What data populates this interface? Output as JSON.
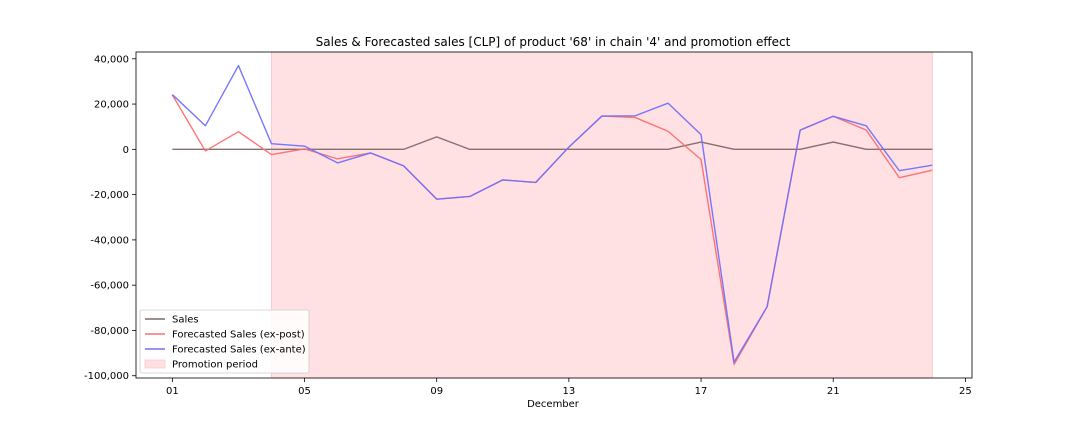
{
  "chart_data": {
    "type": "line",
    "title": "Sales & Forecasted sales [CLP] of product '68' in chain '4' and promotion effect",
    "xlabel": "December",
    "ylabel": "",
    "x": [
      1,
      2,
      3,
      4,
      5,
      6,
      7,
      8,
      9,
      10,
      11,
      12,
      13,
      14,
      15,
      16,
      17,
      18,
      19,
      20,
      21,
      22,
      23,
      24
    ],
    "xlim": [
      -0.1,
      25.2
    ],
    "xticks": [
      1,
      5,
      9,
      13,
      17,
      21,
      25
    ],
    "xtick_labels": [
      "01",
      "05",
      "09",
      "13",
      "17",
      "21",
      "25"
    ],
    "ylim": [
      -101000,
      43000
    ],
    "yticks": [
      40000,
      20000,
      0,
      -20000,
      -40000,
      -60000,
      -80000,
      -100000
    ],
    "ytick_labels": [
      "40,000",
      "20,000",
      "0",
      "-20,000",
      "-40,000",
      "-60,000",
      "-80,000",
      "-100,000"
    ],
    "grid": false,
    "legend_position": "bottom-left",
    "series": [
      {
        "name": "Sales",
        "color": "#7f6868",
        "values": [
          0,
          0,
          0,
          0,
          0,
          0,
          0,
          0,
          5500,
          0,
          0,
          0,
          0,
          0,
          0,
          0,
          3200,
          0,
          0,
          0,
          3200,
          0,
          0,
          0
        ]
      },
      {
        "name": "Forecasted Sales (ex-post)",
        "color": "#ff6e6e",
        "values": [
          24000,
          -700,
          7800,
          -2300,
          200,
          -4200,
          -1600,
          -7300,
          -22000,
          -20800,
          -13500,
          -14600,
          1000,
          14700,
          14100,
          8000,
          -4500,
          -95000,
          -69500,
          8500,
          14600,
          8500,
          -12500,
          -9200
        ]
      },
      {
        "name": "Forecasted Sales (ex-ante)",
        "color": "#7070ff",
        "values": [
          24200,
          10400,
          37000,
          2500,
          1400,
          -6000,
          -1600,
          -7300,
          -22000,
          -20800,
          -13500,
          -14600,
          1000,
          14700,
          14800,
          20400,
          6500,
          -94000,
          -69500,
          8500,
          14600,
          10400,
          -9400,
          -7000
        ]
      }
    ],
    "promotion_period": {
      "label": "Promotion period",
      "color": "#ffe0e3",
      "start": 4,
      "end": 24
    }
  }
}
